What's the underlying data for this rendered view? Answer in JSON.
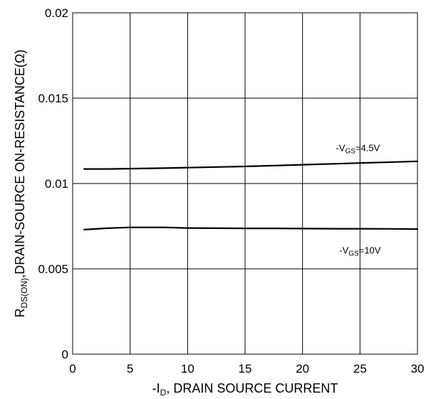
{
  "chart_data": {
    "type": "line",
    "xlabel": {
      "prefix": "-I",
      "sub": "D",
      "suffix": ", DRAIN SOURCE CURRENT"
    },
    "ylabel": {
      "prefix": "R",
      "sub": "DS(ON)",
      "suffix": ",DRAIN-SOURCE ON-RESISTANCE(Ω)"
    },
    "xlim": [
      0,
      30
    ],
    "ylim": [
      0,
      0.02
    ],
    "x_ticks": [
      "0",
      "5",
      "10",
      "15",
      "20",
      "25",
      "30"
    ],
    "y_ticks": [
      "0",
      "0.005",
      "0.01",
      "0.015",
      "0.02"
    ],
    "grid": true,
    "series": [
      {
        "name": "-VGS=4.5V",
        "label": {
          "prefix": "-V",
          "sub": "GS",
          "suffix": "=4.5V"
        },
        "x": [
          1,
          3,
          5,
          8,
          10,
          13,
          15,
          18,
          20,
          23,
          25,
          28,
          30
        ],
        "y": [
          0.01085,
          0.01085,
          0.01087,
          0.0109,
          0.01093,
          0.01097,
          0.011,
          0.01106,
          0.0111,
          0.01116,
          0.0112,
          0.01126,
          0.0113
        ]
      },
      {
        "name": "-VGS=10V",
        "label": {
          "prefix": "-V",
          "sub": "GS",
          "suffix": "=10V"
        },
        "x": [
          1,
          3,
          5,
          8,
          10,
          13,
          15,
          18,
          20,
          23,
          25,
          28,
          30
        ],
        "y": [
          0.0073,
          0.00738,
          0.00743,
          0.00743,
          0.00739,
          0.00738,
          0.00737,
          0.00737,
          0.00736,
          0.00735,
          0.00735,
          0.00734,
          0.00733
        ]
      }
    ]
  }
}
